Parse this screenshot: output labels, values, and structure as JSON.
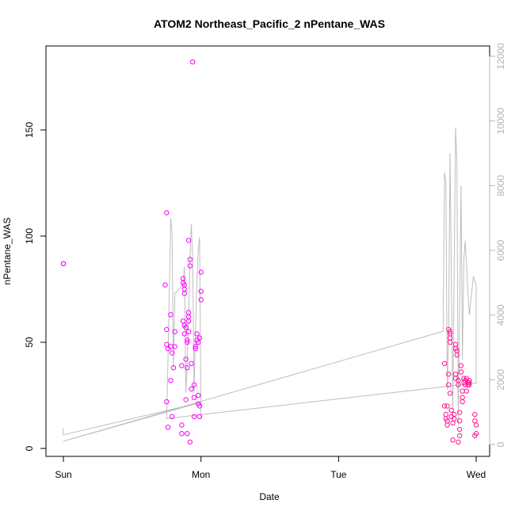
{
  "chart_data": {
    "type": "scatter",
    "title": "ATOM2 Northeast_Pacific_2 nPentane_WAS",
    "xlabel": "Date",
    "ylabel": "nPentane_WAS",
    "xlim": [
      0,
      3.12
    ],
    "ylim": [
      -3,
      184
    ],
    "y2lim": [
      -200,
      12200
    ],
    "x_ticks": [
      {
        "value": 0,
        "label": "Sun"
      },
      {
        "value": 1,
        "label": "Mon"
      },
      {
        "value": 2,
        "label": "Tue"
      },
      {
        "value": 3,
        "label": "Wed"
      }
    ],
    "y_ticks": [
      {
        "value": 0,
        "label": "0"
      },
      {
        "value": 50,
        "label": "50"
      },
      {
        "value": 100,
        "label": "100"
      },
      {
        "value": 150,
        "label": "150"
      }
    ],
    "y2_ticks": [
      {
        "value": 0,
        "label": "0"
      },
      {
        "value": 2000,
        "label": "2000"
      },
      {
        "value": 4000,
        "label": "4000"
      },
      {
        "value": 6000,
        "label": "6000"
      },
      {
        "value": 8000,
        "label": "8000"
      },
      {
        "value": 10000,
        "label": "10000"
      },
      {
        "value": 12000,
        "label": "12000"
      }
    ],
    "colors": {
      "points": "#ff00ff",
      "points_late": "#ff1493",
      "altitude_line": "#bebebe",
      "axis_right": "#b3b3b3"
    },
    "points": [
      [
        0.0,
        87
      ],
      [
        0.0,
        87
      ],
      [
        0.75,
        111
      ],
      [
        0.74,
        77
      ],
      [
        0.75,
        56
      ],
      [
        0.75,
        49
      ],
      [
        0.76,
        47
      ],
      [
        0.75,
        22
      ],
      [
        0.76,
        10
      ],
      [
        0.78,
        63
      ],
      [
        0.78,
        48
      ],
      [
        0.79,
        45
      ],
      [
        0.78,
        32
      ],
      [
        0.79,
        15
      ],
      [
        0.8,
        38
      ],
      [
        0.81,
        55
      ],
      [
        0.81,
        48
      ],
      [
        0.86,
        11
      ],
      [
        0.86,
        7
      ],
      [
        0.86,
        39
      ],
      [
        0.87,
        80
      ],
      [
        0.87,
        78
      ],
      [
        0.88,
        77
      ],
      [
        0.88,
        75
      ],
      [
        0.88,
        73
      ],
      [
        0.87,
        60
      ],
      [
        0.88,
        58
      ],
      [
        0.89,
        57
      ],
      [
        0.88,
        54
      ],
      [
        0.89,
        42
      ],
      [
        0.9,
        38
      ],
      [
        0.89,
        23
      ],
      [
        0.9,
        7
      ],
      [
        0.9,
        51
      ],
      [
        0.9,
        50
      ],
      [
        0.91,
        62
      ],
      [
        0.91,
        60
      ],
      [
        0.91,
        64
      ],
      [
        0.91,
        55
      ],
      [
        0.91,
        98
      ],
      [
        0.92,
        89
      ],
      [
        0.92,
        86
      ],
      [
        0.92,
        3
      ],
      [
        0.93,
        40
      ],
      [
        0.93,
        28
      ],
      [
        0.94,
        182
      ],
      [
        0.95,
        30
      ],
      [
        0.95,
        24
      ],
      [
        0.96,
        48
      ],
      [
        0.96,
        47
      ],
      [
        0.95,
        15
      ],
      [
        0.97,
        54
      ],
      [
        0.97,
        51
      ],
      [
        0.98,
        21
      ],
      [
        0.98,
        25
      ],
      [
        0.99,
        20
      ],
      [
        0.99,
        15
      ],
      [
        0.98,
        50
      ],
      [
        0.99,
        52
      ],
      [
        1.0,
        83
      ],
      [
        1.0,
        74
      ],
      [
        1.0,
        70
      ],
      [
        2.77,
        40
      ],
      [
        2.77,
        20
      ],
      [
        2.78,
        16
      ],
      [
        2.78,
        14
      ],
      [
        2.79,
        13
      ],
      [
        2.79,
        11
      ],
      [
        2.79,
        20
      ],
      [
        2.8,
        35
      ],
      [
        2.8,
        30
      ],
      [
        2.81,
        26
      ],
      [
        2.8,
        56
      ],
      [
        2.81,
        55
      ],
      [
        2.81,
        54
      ],
      [
        2.81,
        52
      ],
      [
        2.81,
        50
      ],
      [
        2.82,
        18
      ],
      [
        2.82,
        15
      ],
      [
        2.83,
        12
      ],
      [
        2.83,
        4
      ],
      [
        2.84,
        16
      ],
      [
        2.84,
        14
      ],
      [
        2.85,
        35
      ],
      [
        2.85,
        33
      ],
      [
        2.85,
        49
      ],
      [
        2.85,
        47
      ],
      [
        2.86,
        46
      ],
      [
        2.86,
        44
      ],
      [
        2.87,
        32
      ],
      [
        2.87,
        30
      ],
      [
        2.88,
        17
      ],
      [
        2.88,
        13
      ],
      [
        2.88,
        9
      ],
      [
        2.88,
        6
      ],
      [
        2.87,
        3
      ],
      [
        2.89,
        39
      ],
      [
        2.89,
        36
      ],
      [
        2.9,
        27
      ],
      [
        2.9,
        24
      ],
      [
        2.9,
        22
      ],
      [
        2.91,
        33
      ],
      [
        2.91,
        31
      ],
      [
        2.92,
        32
      ],
      [
        2.92,
        30
      ],
      [
        2.93,
        27
      ],
      [
        2.93,
        33
      ],
      [
        2.94,
        31
      ],
      [
        2.94,
        30
      ],
      [
        2.95,
        32
      ],
      [
        2.95,
        31
      ],
      [
        2.95,
        30
      ],
      [
        2.99,
        16
      ],
      [
        2.99,
        13
      ],
      [
        2.99,
        6
      ],
      [
        3.0,
        7
      ],
      [
        3.0,
        11
      ]
    ],
    "altitude_path": [
      [
        0.0,
        500
      ],
      [
        0.0,
        300
      ],
      [
        1.0,
        1300
      ],
      [
        0.0,
        100
      ],
      [
        2.76,
        3500
      ],
      [
        2.77,
        8400
      ],
      [
        2.78,
        8100
      ],
      [
        2.79,
        1700
      ],
      [
        2.8,
        3700
      ],
      [
        2.81,
        9000
      ],
      [
        2.83,
        1100
      ],
      [
        2.85,
        9800
      ],
      [
        2.86,
        8700
      ],
      [
        2.87,
        600
      ],
      [
        2.89,
        8000
      ],
      [
        2.9,
        2600
      ],
      [
        2.91,
        5700
      ],
      [
        2.92,
        6300
      ],
      [
        2.95,
        4000
      ],
      [
        2.98,
        5200
      ],
      [
        3.0,
        4900
      ],
      [
        3.0,
        1900
      ],
      [
        0.75,
        800
      ],
      [
        0.76,
        2600
      ],
      [
        0.78,
        7000
      ],
      [
        0.79,
        6500
      ],
      [
        0.8,
        2400
      ],
      [
        0.81,
        4700
      ],
      [
        0.82,
        4700
      ],
      [
        0.86,
        4900
      ],
      [
        0.87,
        5000
      ],
      [
        0.88,
        5500
      ],
      [
        0.89,
        1600
      ],
      [
        0.9,
        2600
      ],
      [
        0.91,
        3800
      ],
      [
        0.92,
        5800
      ],
      [
        0.93,
        6800
      ],
      [
        0.94,
        5700
      ],
      [
        0.95,
        1600
      ],
      [
        0.96,
        3500
      ],
      [
        0.97,
        5000
      ],
      [
        0.98,
        6000
      ],
      [
        0.99,
        6400
      ],
      [
        1.0,
        800
      ]
    ]
  }
}
